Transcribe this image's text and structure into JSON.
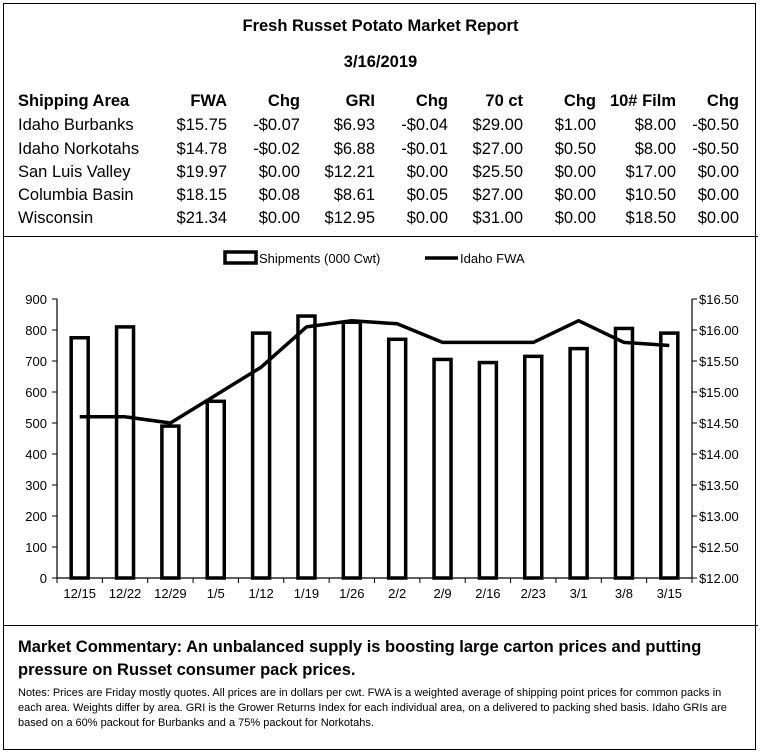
{
  "report": {
    "title": "Fresh Russet Potato Market Report",
    "date": "3/16/2019"
  },
  "table": {
    "headers": [
      "Shipping Area",
      "FWA",
      "Chg",
      "GRI",
      "Chg",
      "70 ct",
      "Chg",
      "10# Film",
      "Chg"
    ],
    "rows": [
      [
        "Idaho Burbanks",
        "$15.75",
        "-$0.07",
        "$6.93",
        "-$0.04",
        "$29.00",
        "$1.00",
        "$8.00",
        "-$0.50"
      ],
      [
        "Idaho Norkotahs",
        "$14.78",
        "-$0.02",
        "$6.88",
        "-$0.01",
        "$27.00",
        "$0.50",
        "$8.00",
        "-$0.50"
      ],
      [
        "San Luis Valley",
        "$19.97",
        "$0.00",
        "$12.21",
        "$0.00",
        "$25.50",
        "$0.00",
        "$17.00",
        "$0.00"
      ],
      [
        "Columbia Basin",
        "$18.15",
        "$0.08",
        "$8.61",
        "$0.05",
        "$27.00",
        "$0.00",
        "$10.50",
        "$0.00"
      ],
      [
        "Wisconsin",
        "$21.34",
        "$0.00",
        "$12.95",
        "$0.00",
        "$31.00",
        "$0.00",
        "$18.50",
        "$0.00"
      ]
    ]
  },
  "chart_data": {
    "type": "bar",
    "categories": [
      "12/15",
      "12/22",
      "12/29",
      "1/5",
      "1/12",
      "1/19",
      "1/26",
      "2/2",
      "2/9",
      "2/16",
      "2/23",
      "3/1",
      "3/8",
      "3/15"
    ],
    "series": [
      {
        "name": "Shipments (000 Cwt)",
        "type": "bar",
        "axis": "left",
        "values": [
          775,
          810,
          490,
          570,
          790,
          845,
          825,
          770,
          705,
          695,
          715,
          740,
          805,
          790
        ]
      },
      {
        "name": "Idaho FWA",
        "type": "line",
        "axis": "right",
        "values": [
          14.6,
          14.6,
          14.5,
          14.95,
          15.4,
          16.05,
          16.15,
          16.1,
          15.8,
          15.8,
          15.8,
          16.15,
          15.8,
          15.75
        ]
      }
    ],
    "ylim_left": [
      0,
      900
    ],
    "left_ticks": [
      "0",
      "100",
      "200",
      "300",
      "400",
      "500",
      "600",
      "700",
      "800",
      "900"
    ],
    "ylim_right": [
      12.0,
      16.5
    ],
    "right_ticks": [
      "$12.00",
      "$12.50",
      "$13.00",
      "$13.50",
      "$14.00",
      "$14.50",
      "$15.00",
      "$15.50",
      "$16.00",
      "$16.50"
    ],
    "legend_position": "top-center",
    "grid": false
  },
  "commentary": {
    "text": "Market Commentary: An unbalanced supply is boosting large carton prices and putting pressure on Russet consumer pack prices."
  },
  "notes": {
    "text": "Notes: Prices are Friday mostly quotes. All prices are in dollars per cwt. FWA is a weighted average of shipping point prices for common packs in each area. Weights differ by area. GRI is the Grower Returns Index for each individual area, on a delivered to packing shed basis. Idaho GRIs are based on a 60% packout for Burbanks and a 75% packout for Norkotahs."
  }
}
